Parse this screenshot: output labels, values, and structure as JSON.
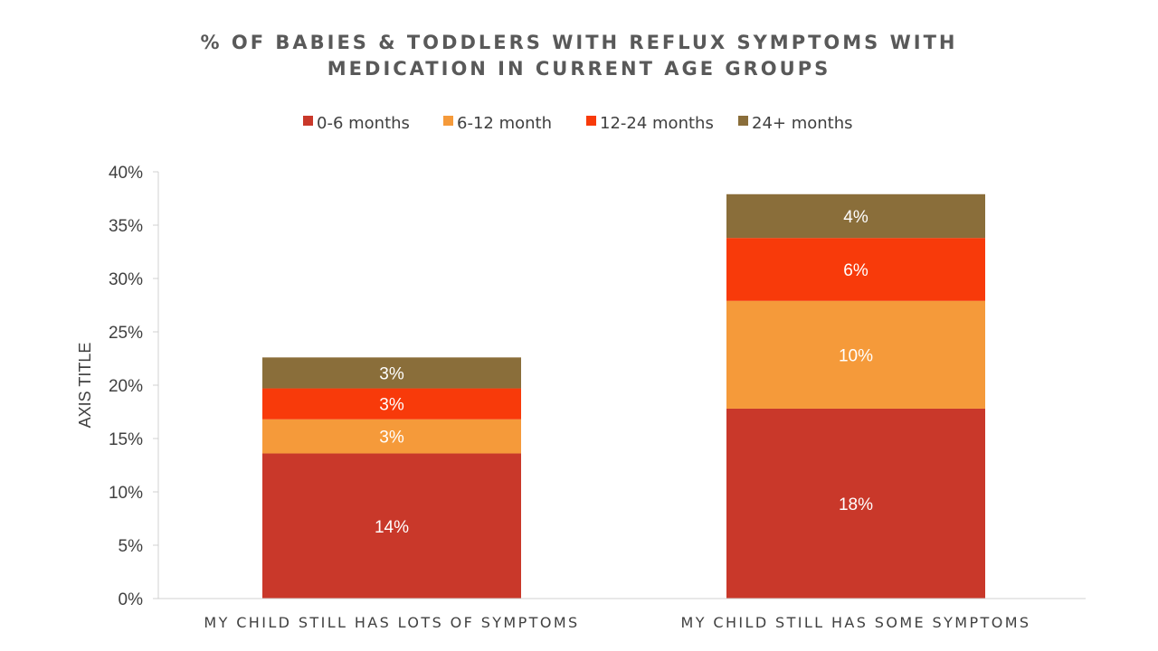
{
  "chart_data": {
    "type": "bar",
    "stacked": true,
    "title_lines": [
      "% OF BABIES & TODDLERS WITH REFLUX SYMPTOMS WITH",
      "MEDICATION IN CURRENT AGE GROUPS"
    ],
    "ylabel": "AXIS TITLE",
    "xlabel": "",
    "ylim": [
      0,
      40
    ],
    "ytick_step": 5,
    "yticks": [
      "0%",
      "5%",
      "10%",
      "15%",
      "20%",
      "25%",
      "30%",
      "35%",
      "40%"
    ],
    "legend_position": "top",
    "grid": false,
    "categories": [
      "MY CHILD STILL HAS LOTS OF SYMPTOMS",
      "MY CHILD STILL HAS SOME SYMPTOMS"
    ],
    "series": [
      {
        "name": "0-6 months",
        "color": "#C9382A",
        "values": [
          13.6,
          17.8
        ],
        "labels": [
          "14%",
          "18%"
        ]
      },
      {
        "name": "6-12 month",
        "color": "#F59A3A",
        "values": [
          3.2,
          10.1
        ],
        "labels": [
          "3%",
          "10%"
        ]
      },
      {
        "name": "12-24 months",
        "color": "#F83A0A",
        "values": [
          2.9,
          5.9
        ],
        "labels": [
          "3%",
          "6%"
        ]
      },
      {
        "name": "24+ months",
        "color": "#8A6E3A",
        "values": [
          2.9,
          4.1
        ],
        "labels": [
          "3%",
          "4%"
        ]
      }
    ]
  }
}
